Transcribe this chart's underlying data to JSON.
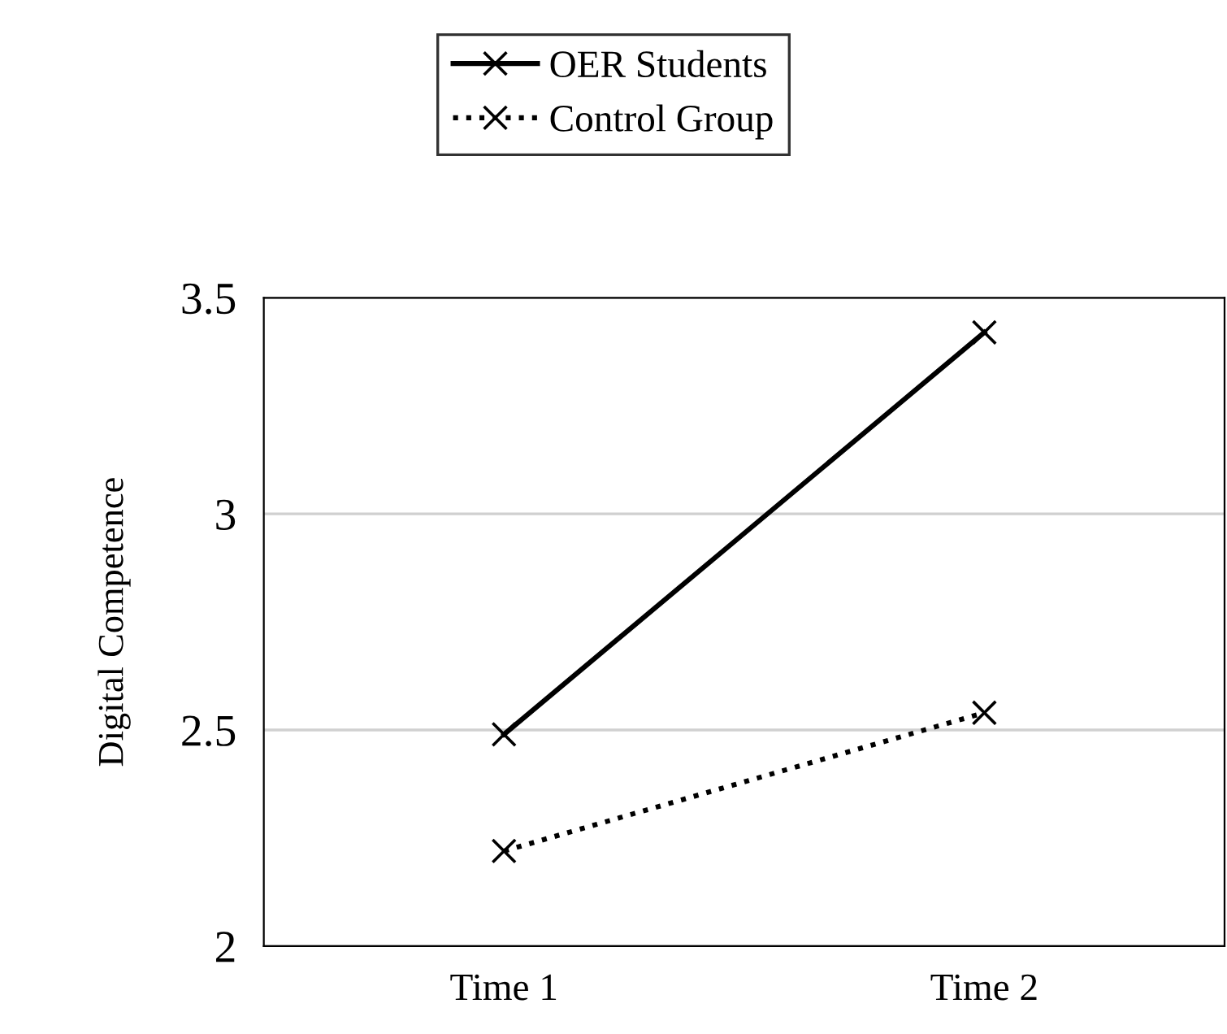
{
  "chart_data": {
    "type": "line",
    "ylabel": "Digital Competence",
    "categories": [
      "Time 1",
      "Time 2"
    ],
    "series": [
      {
        "name": "OER Students",
        "color": "#000000",
        "values": [
          2.49,
          3.42
        ],
        "line_style": "solid"
      },
      {
        "name": "Control Group",
        "color": "#000000",
        "values": [
          2.22,
          2.54
        ],
        "line_style": "dotted"
      }
    ],
    "ylim": [
      2,
      3.5
    ],
    "yticks": [
      2,
      2.5,
      3,
      3.5
    ],
    "grid": "y",
    "legend": "top",
    "marker": "cross"
  }
}
